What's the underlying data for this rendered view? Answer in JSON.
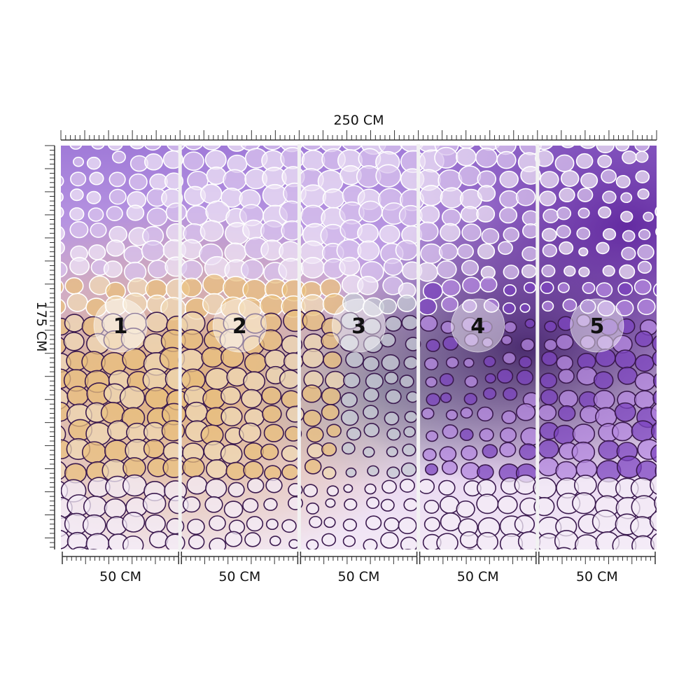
{
  "header": {
    "width_label": "250 CM",
    "height_label": "175 CM"
  },
  "panels": [
    {
      "number": "1",
      "width_label": "50 CM"
    },
    {
      "number": "2",
      "width_label": "50 CM"
    },
    {
      "number": "3",
      "width_label": "50 CM"
    },
    {
      "number": "4",
      "width_label": "50 CM"
    },
    {
      "number": "5",
      "width_label": "50 CM"
    }
  ]
}
